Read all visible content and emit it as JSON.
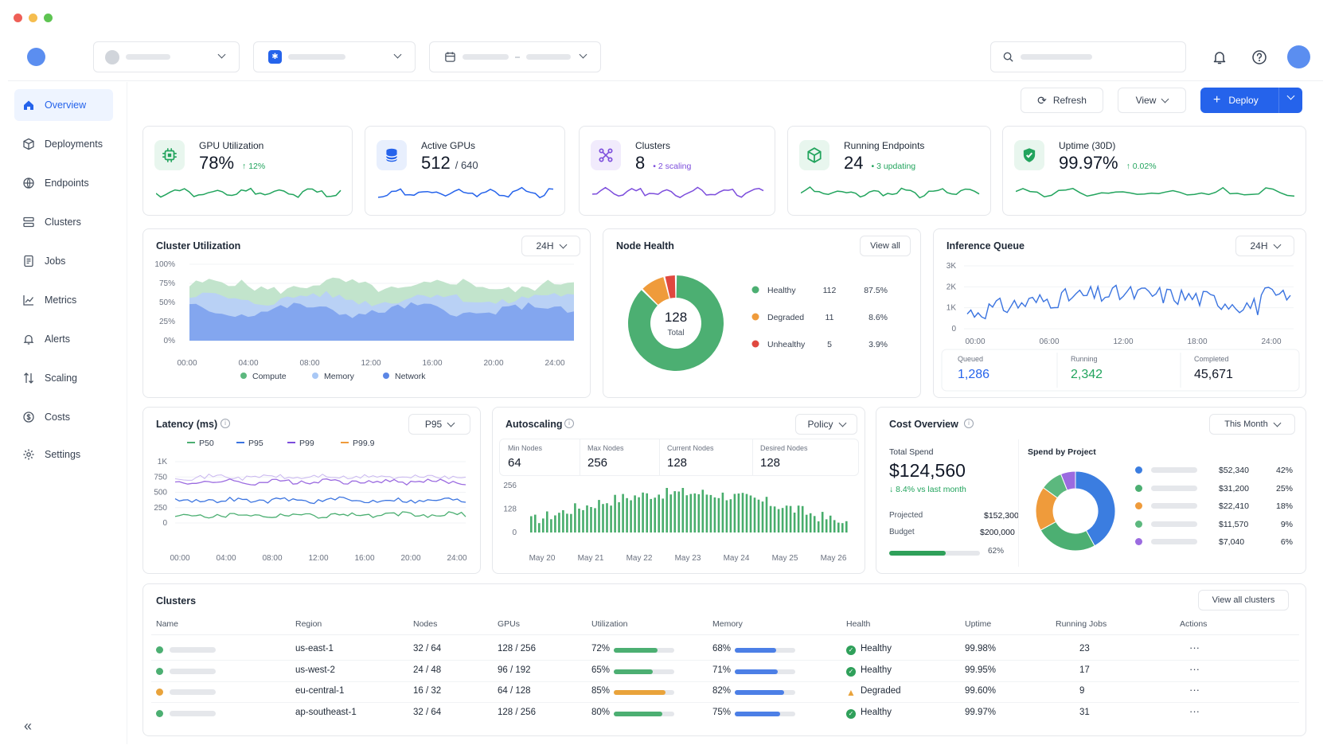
{
  "nav": {
    "items": [
      {
        "label": "Overview",
        "icon": "home-icon",
        "active": true
      },
      {
        "label": "Deployments",
        "icon": "cube-icon"
      },
      {
        "label": "Endpoints",
        "icon": "globe-icon"
      },
      {
        "label": "Clusters",
        "icon": "server-icon"
      },
      {
        "label": "Jobs",
        "icon": "document-icon"
      },
      {
        "label": "Metrics",
        "icon": "line-chart-icon"
      },
      {
        "label": "Alerts",
        "icon": "bell-icon"
      },
      {
        "label": "Scaling",
        "icon": "scaling-arrows-icon"
      },
      {
        "label": "Costs",
        "icon": "dollar-icon"
      },
      {
        "label": "Settings",
        "icon": "gear-icon"
      }
    ]
  },
  "toolbar": {
    "refresh": "Refresh",
    "view": "View",
    "deploy": "Deploy"
  },
  "kpis": [
    {
      "title": "GPU Utilization",
      "value": "78%",
      "sub": "",
      "delta": "↑ 12%",
      "color": "#22a45d",
      "iconbg": "#e8f6ee"
    },
    {
      "title": "Active GPUs",
      "value": "512",
      "sub": "/ 640",
      "delta": "",
      "color": "#2563eb",
      "iconbg": "#e8effd"
    },
    {
      "title": "Clusters",
      "value": "8",
      "sub": "",
      "delta": "• 2 scaling",
      "color": "#7c4ddc",
      "iconbg": "#f1ebfc"
    },
    {
      "title": "Running Endpoints",
      "value": "24",
      "sub": "",
      "delta": "• 3 updating",
      "color": "#22a45d",
      "iconbg": "#e8f6ee"
    },
    {
      "title": "Uptime (30D)",
      "value": "99.97%",
      "sub": "",
      "delta": "↑ 0.02%",
      "color": "#22a45d",
      "iconbg": "#e8f6ee"
    }
  ],
  "cluster_util": {
    "title": "Cluster Utilization",
    "range": "24H",
    "yticks": [
      "100%",
      "75%",
      "50%",
      "25%",
      "0%"
    ],
    "xticks": [
      "00:00",
      "04:00",
      "08:00",
      "12:00",
      "16:00",
      "20:00",
      "24:00"
    ],
    "legend": [
      {
        "name": "Compute",
        "color": "#5cb87e"
      },
      {
        "name": "Memory",
        "color": "#a9c8f5"
      },
      {
        "name": "Network",
        "color": "#5b86e5"
      }
    ]
  },
  "node_health": {
    "title": "Node Health",
    "view_all": "View all",
    "total": "128",
    "total_label": "Total",
    "rows": [
      {
        "name": "Healthy",
        "count": "112",
        "pct": "87.5%",
        "color": "#4caf72"
      },
      {
        "name": "Degraded",
        "count": "11",
        "pct": "8.6%",
        "color": "#ef9b3b"
      },
      {
        "name": "Unhealthy",
        "count": "5",
        "pct": "3.9%",
        "color": "#e0483f"
      }
    ]
  },
  "inference": {
    "title": "Inference Queue",
    "range": "24H",
    "yticks": [
      "3K",
      "2K",
      "1K",
      "0"
    ],
    "xticks": [
      "00:00",
      "06:00",
      "12:00",
      "18:00",
      "24:00"
    ],
    "stats": [
      {
        "label": "Queued",
        "value": "1,286",
        "color": "#2563eb"
      },
      {
        "label": "Running",
        "value": "2,342",
        "color": "#22a45d"
      },
      {
        "label": "Completed",
        "value": "45,671",
        "color": "#111827"
      }
    ]
  },
  "latency": {
    "title": "Latency (ms)",
    "select": "P95",
    "legend": [
      {
        "name": "P50",
        "color": "#4caf72"
      },
      {
        "name": "P95",
        "color": "#3b74e0"
      },
      {
        "name": "P99",
        "color": "#7c4ddc"
      },
      {
        "name": "P99.9",
        "color": "#ef9b3b"
      }
    ],
    "yticks": [
      "1K",
      "750",
      "500",
      "250",
      "0"
    ],
    "xticks": [
      "00:00",
      "04:00",
      "08:00",
      "12:00",
      "16:00",
      "20:00",
      "24:00"
    ]
  },
  "autoscaling": {
    "title": "Autoscaling",
    "select": "Policy",
    "stats": [
      {
        "label": "Min Nodes",
        "value": "64"
      },
      {
        "label": "Max Nodes",
        "value": "256"
      },
      {
        "label": "Current Nodes",
        "value": "128"
      },
      {
        "label": "Desired Nodes",
        "value": "128"
      }
    ],
    "yticks": [
      "256",
      "128",
      "0"
    ],
    "xticks": [
      "May 20",
      "May 21",
      "May 22",
      "May 23",
      "May 24",
      "May 25",
      "May 26"
    ]
  },
  "cost": {
    "title": "Cost Overview",
    "select": "This Month",
    "total_label": "Total Spend",
    "total": "$124,560",
    "delta": "↓ 8.4% vs last month",
    "projected_label": "Projected",
    "projected": "$152,300",
    "budget_label": "Budget",
    "budget": "$200,000",
    "budget_pct": "62%",
    "budget_frac": 0.62,
    "spend_title": "Spend by Project",
    "projects": [
      {
        "amount": "$52,340",
        "pct": "42%",
        "color": "#3b7de0",
        "frac": 0.42
      },
      {
        "amount": "$31,200",
        "pct": "25%",
        "color": "#4caf72",
        "frac": 0.25
      },
      {
        "amount": "$22,410",
        "pct": "18%",
        "color": "#ef9b3b",
        "frac": 0.18
      },
      {
        "amount": "$11,570",
        "pct": "9%",
        "color": "#5cb87e",
        "frac": 0.09
      },
      {
        "amount": "$7,040",
        "pct": "6%",
        "color": "#9b6be0",
        "frac": 0.06
      }
    ]
  },
  "clusters_table": {
    "title": "Clusters",
    "view_all": "View all clusters",
    "headers": [
      "Name",
      "Region",
      "Nodes",
      "GPUs",
      "Utilization",
      "Memory",
      "Health",
      "Uptime",
      "Running Jobs",
      "Actions"
    ],
    "rows": [
      {
        "region": "us-east-1",
        "nodes": "32 / 64",
        "gpus": "128 / 256",
        "util": "72%",
        "util_frac": 0.72,
        "util_color": "#4caf72",
        "mem": "68%",
        "mem_frac": 0.68,
        "health": "Healthy",
        "status": "ok",
        "uptime": "99.98%",
        "jobs": "23",
        "dot": "#4caf72"
      },
      {
        "region": "us-west-2",
        "nodes": "24 / 48",
        "gpus": "96 / 192",
        "util": "65%",
        "util_frac": 0.65,
        "util_color": "#4caf72",
        "mem": "71%",
        "mem_frac": 0.71,
        "health": "Healthy",
        "status": "ok",
        "uptime": "99.95%",
        "jobs": "17",
        "dot": "#4caf72"
      },
      {
        "region": "eu-central-1",
        "nodes": "16 / 32",
        "gpus": "64 / 128",
        "util": "85%",
        "util_frac": 0.85,
        "util_color": "#e9a33b",
        "mem": "82%",
        "mem_frac": 0.82,
        "health": "Degraded",
        "status": "warn",
        "uptime": "99.60%",
        "jobs": "9",
        "dot": "#e9a33b"
      },
      {
        "region": "ap-southeast-1",
        "nodes": "32 / 64",
        "gpus": "128 / 256",
        "util": "80%",
        "util_frac": 0.8,
        "util_color": "#4caf72",
        "mem": "75%",
        "mem_frac": 0.75,
        "health": "Healthy",
        "status": "ok",
        "uptime": "99.97%",
        "jobs": "31",
        "dot": "#4caf72"
      }
    ]
  }
}
